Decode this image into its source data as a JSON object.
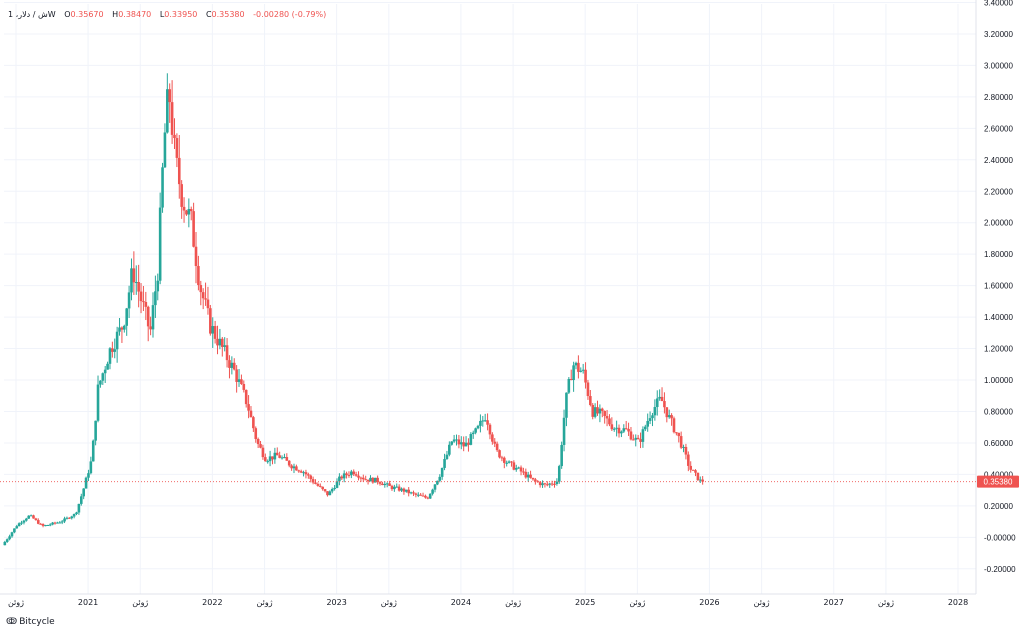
{
  "legend": {
    "symbol": "1 ،ش / دلارW",
    "o_label": "O",
    "o_value": "0.35670",
    "h_label": "H",
    "h_value": "0.38470",
    "l_label": "L",
    "l_value": "0.33950",
    "c_label": "C",
    "c_value": "0.35380",
    "change": "-0.00280 (-0.79%)"
  },
  "brand": {
    "logo": "ↂ",
    "name": "Bitcycle"
  },
  "colors": {
    "up": "#26a69a",
    "down": "#ef5350",
    "grid": "#f0f3fa",
    "price_line": "#ef5350",
    "axis_text": "#131722"
  },
  "chart_data": {
    "type": "candlestick",
    "title": "",
    "last_price": "0.35380",
    "ylim": [
      -0.2,
      3.4
    ],
    "y_ticks": [
      "3.40000",
      "3.20000",
      "3.00000",
      "2.80000",
      "2.60000",
      "2.40000",
      "2.20000",
      "2.00000",
      "1.80000",
      "1.60000",
      "1.40000",
      "1.20000",
      "1.00000",
      "0.80000",
      "0.60000",
      "0.40000",
      "0.20000",
      "-0.00000",
      "-0.20000"
    ],
    "x_ticks": [
      {
        "label": "ژوئن",
        "t": 2020.42
      },
      {
        "label": "2021",
        "t": 2021.0
      },
      {
        "label": "ژوئن",
        "t": 2021.42
      },
      {
        "label": "2022",
        "t": 2022.0
      },
      {
        "label": "ژوئن",
        "t": 2022.42
      },
      {
        "label": "2023",
        "t": 2023.0
      },
      {
        "label": "ژوئن",
        "t": 2023.42
      },
      {
        "label": "2024",
        "t": 2024.0
      },
      {
        "label": "ژوئن",
        "t": 2024.42
      },
      {
        "label": "2025",
        "t": 2025.0
      },
      {
        "label": "ژوئن",
        "t": 2025.42
      },
      {
        "label": "2026",
        "t": 2026.0
      },
      {
        "label": "ژوئن",
        "t": 2026.42
      },
      {
        "label": "2027",
        "t": 2027.0
      },
      {
        "label": "ژوئن",
        "t": 2027.42
      },
      {
        "label": "2028",
        "t": 2028.0
      }
    ],
    "price_path": [
      [
        2020.33,
        -0.05
      ],
      [
        2020.45,
        0.08
      ],
      [
        2020.55,
        0.14
      ],
      [
        2020.65,
        0.07
      ],
      [
        2020.8,
        0.1
      ],
      [
        2020.92,
        0.15
      ],
      [
        2020.98,
        0.3
      ],
      [
        2021.05,
        0.5
      ],
      [
        2021.1,
        0.95
      ],
      [
        2021.2,
        1.2
      ],
      [
        2021.3,
        1.35
      ],
      [
        2021.38,
        1.7
      ],
      [
        2021.45,
        1.5
      ],
      [
        2021.52,
        1.3
      ],
      [
        2021.58,
        1.7
      ],
      [
        2021.63,
        2.5
      ],
      [
        2021.67,
        2.85
      ],
      [
        2021.72,
        2.4
      ],
      [
        2021.78,
        2.15
      ],
      [
        2021.85,
        2.0
      ],
      [
        2021.92,
        1.6
      ],
      [
        2022.0,
        1.35
      ],
      [
        2022.1,
        1.2
      ],
      [
        2022.2,
        1.05
      ],
      [
        2022.3,
        0.85
      ],
      [
        2022.38,
        0.6
      ],
      [
        2022.45,
        0.5
      ],
      [
        2022.55,
        0.52
      ],
      [
        2022.65,
        0.46
      ],
      [
        2022.75,
        0.42
      ],
      [
        2022.85,
        0.34
      ],
      [
        2022.95,
        0.27
      ],
      [
        2023.05,
        0.38
      ],
      [
        2023.15,
        0.42
      ],
      [
        2023.25,
        0.37
      ],
      [
        2023.35,
        0.36
      ],
      [
        2023.45,
        0.32
      ],
      [
        2023.55,
        0.3
      ],
      [
        2023.65,
        0.27
      ],
      [
        2023.75,
        0.25
      ],
      [
        2023.85,
        0.4
      ],
      [
        2023.95,
        0.62
      ],
      [
        2024.05,
        0.58
      ],
      [
        2024.15,
        0.68
      ],
      [
        2024.22,
        0.78
      ],
      [
        2024.3,
        0.55
      ],
      [
        2024.4,
        0.47
      ],
      [
        2024.5,
        0.42
      ],
      [
        2024.6,
        0.36
      ],
      [
        2024.7,
        0.33
      ],
      [
        2024.8,
        0.36
      ],
      [
        2024.86,
        0.85
      ],
      [
        2024.92,
        1.1
      ],
      [
        2025.0,
        1.05
      ],
      [
        2025.08,
        0.8
      ],
      [
        2025.15,
        0.78
      ],
      [
        2025.25,
        0.7
      ],
      [
        2025.35,
        0.68
      ],
      [
        2025.45,
        0.6
      ],
      [
        2025.55,
        0.8
      ],
      [
        2025.63,
        0.88
      ],
      [
        2025.7,
        0.75
      ],
      [
        2025.78,
        0.62
      ],
      [
        2025.86,
        0.44
      ],
      [
        2025.95,
        0.354
      ]
    ]
  }
}
